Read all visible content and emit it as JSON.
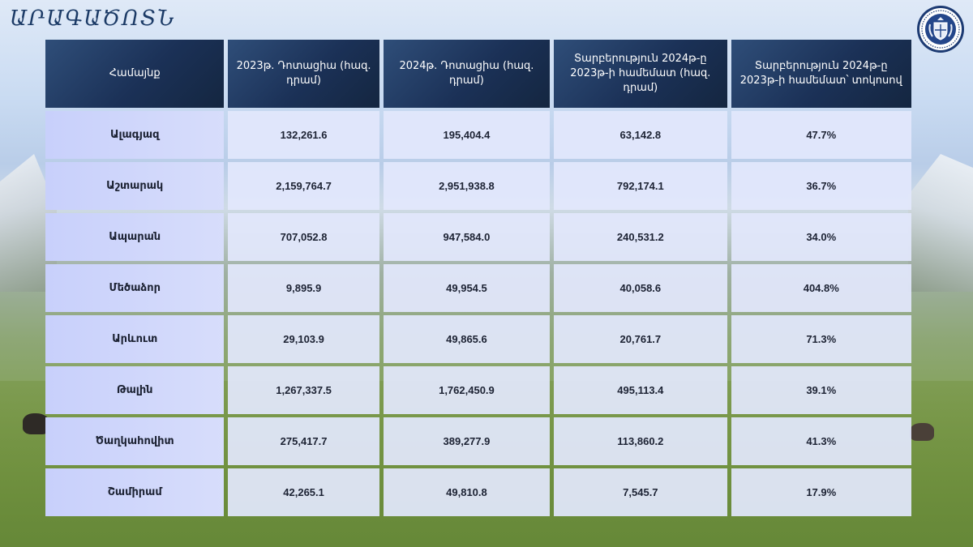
{
  "header": {
    "title": "ԱՐԱԳԱԾՈՏՆ",
    "logo_icon": "government-coat-of-arms-seal"
  },
  "table": {
    "columns": [
      "Համայնք",
      "2023թ. Դոտացիա (հազ. դրամ)",
      "2024թ. Դոտացիա (հազ. դրամ)",
      "Տարբերություն 2024թ-ը 2023թ-ի համեմատ (հազ. դրամ)",
      "Տարբերություն 2024թ-ը 2023թ-ի համեմատ՝ տոկոսով"
    ],
    "rows": [
      [
        "Ալագյազ",
        "132,261.6",
        "195,404.4",
        "63,142.8",
        "47.7%"
      ],
      [
        "Աշտարակ",
        "2,159,764.7",
        "2,951,938.8",
        "792,174.1",
        "36.7%"
      ],
      [
        "Ապարան",
        "707,052.8",
        "947,584.0",
        "240,531.2",
        "34.0%"
      ],
      [
        "Մեծաձոր",
        "9,895.9",
        "49,954.5",
        "40,058.6",
        "404.8%"
      ],
      [
        "Արևուտ",
        "29,103.9",
        "49,865.6",
        "20,761.7",
        "71.3%"
      ],
      [
        "Թալին",
        "1,267,337.5",
        "1,762,450.9",
        "495,113.4",
        "39.1%"
      ],
      [
        "Ծաղկահովիտ",
        "275,417.7",
        "389,277.9",
        "113,860.2",
        "41.3%"
      ],
      [
        "Շամիրամ",
        "42,265.1",
        "49,810.8",
        "7,545.7",
        "17.9%"
      ]
    ]
  },
  "colors": {
    "title": "#1b3a66",
    "header_bg": "#1b3157",
    "cell_bg": "#e2e7fc",
    "region_cell_bg": "#c8d0fb"
  }
}
